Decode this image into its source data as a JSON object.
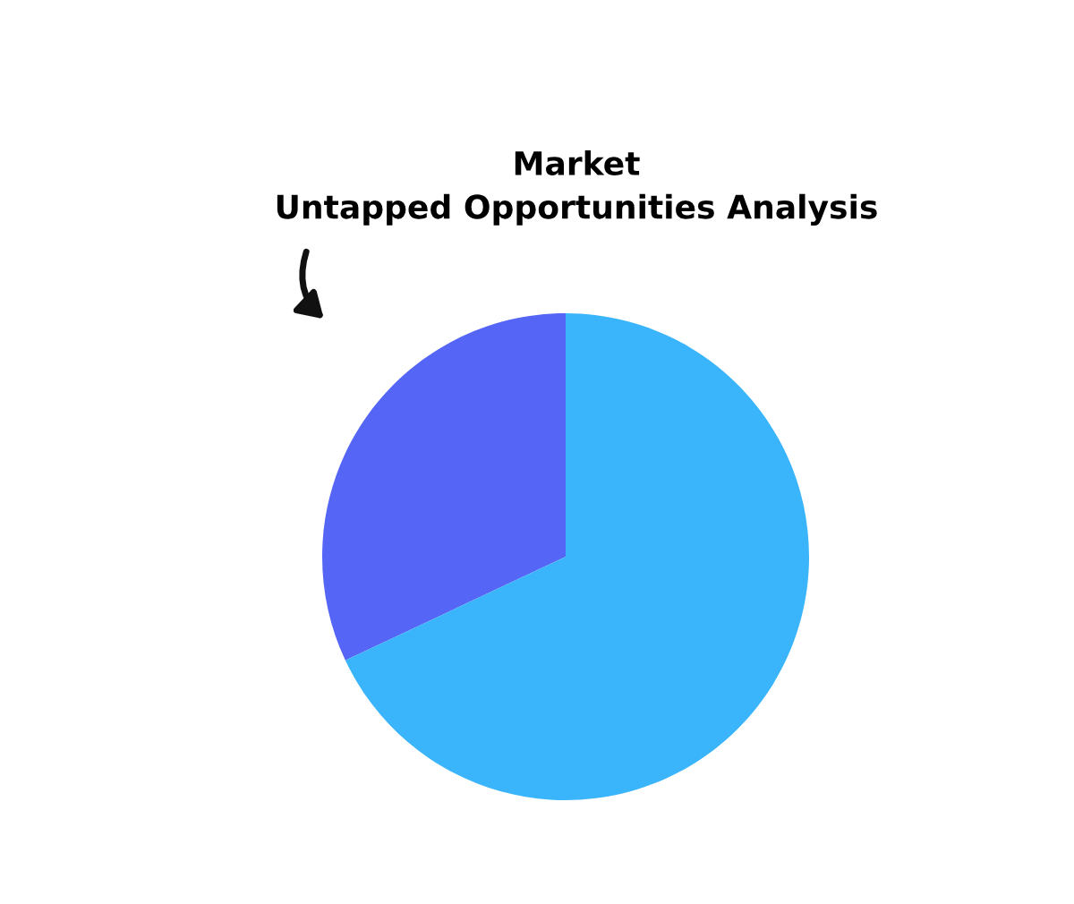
{
  "chart_data": {
    "type": "pie",
    "title": "Market\nUntapped Opportunities Analysis",
    "categories": [
      null,
      null
    ],
    "values": [
      32,
      68
    ],
    "colors": [
      "#5566f6",
      "#3ab4fa"
    ]
  }
}
